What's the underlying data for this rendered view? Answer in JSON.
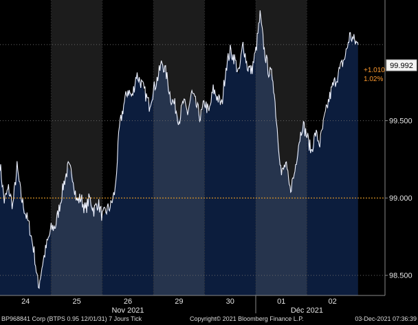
{
  "chart_data": {
    "type": "line",
    "title": "",
    "xlabel": "",
    "ylabel": "",
    "ylim": [
      98.37,
      100.28
    ],
    "yticks": [
      "98.500",
      "99.000",
      "99.500"
    ],
    "grid": true,
    "sessions": [
      "24",
      "25",
      "26",
      "29",
      "30",
      "01",
      "02"
    ],
    "months": [
      "Nov 2021",
      "Déc 2021"
    ],
    "reference_price": 99.0,
    "last_price": "99.992",
    "change": "+1.010",
    "change_pct": "1.02%",
    "series": [
      {
        "values": [
          99.22,
          98.98,
          99.06,
          98.95,
          99.2,
          99.0,
          98.9,
          98.8,
          98.65,
          98.42,
          98.58,
          98.7,
          98.8,
          98.82,
          98.95,
          99.1,
          99.2,
          99.15,
          98.98,
          99.0,
          98.92,
          99.0,
          98.92,
          98.97,
          98.88,
          98.92,
          98.95,
          99.05,
          99.45,
          99.6,
          99.7,
          99.65,
          99.8,
          99.75,
          99.68,
          99.6,
          99.7,
          99.78,
          99.88,
          99.8,
          99.65,
          99.6,
          99.5,
          99.62,
          99.55,
          99.68,
          99.6,
          99.52,
          99.62,
          99.55,
          99.7,
          99.65,
          99.6,
          99.85,
          99.95,
          99.9,
          99.8,
          100.0,
          99.85,
          99.82,
          99.95,
          100.18,
          99.95,
          99.82,
          99.78,
          99.45,
          99.15,
          99.22,
          99.05,
          99.15,
          99.35,
          99.48,
          99.4,
          99.3,
          99.42,
          99.35,
          99.5,
          99.62,
          99.72,
          99.78,
          99.85,
          99.92,
          100.05,
          100.02,
          99.99
        ]
      }
    ]
  },
  "footer": {
    "left": "BP968841 Corp (BTPS 0.95 12/01/31) 7 Jours Tick",
    "center": "Copyright© 2021 Bloomberg Finance L.P.",
    "right": "03-Dec-2021 07:36:39"
  },
  "colors": {
    "background": "#000000",
    "session_dark": "#1c1c1c",
    "area_light": "#26344d",
    "area_dark": "#0c1d3d",
    "line": "#eef2ff",
    "reference_line": "#e89a22",
    "grid": "#6a6a6a"
  }
}
